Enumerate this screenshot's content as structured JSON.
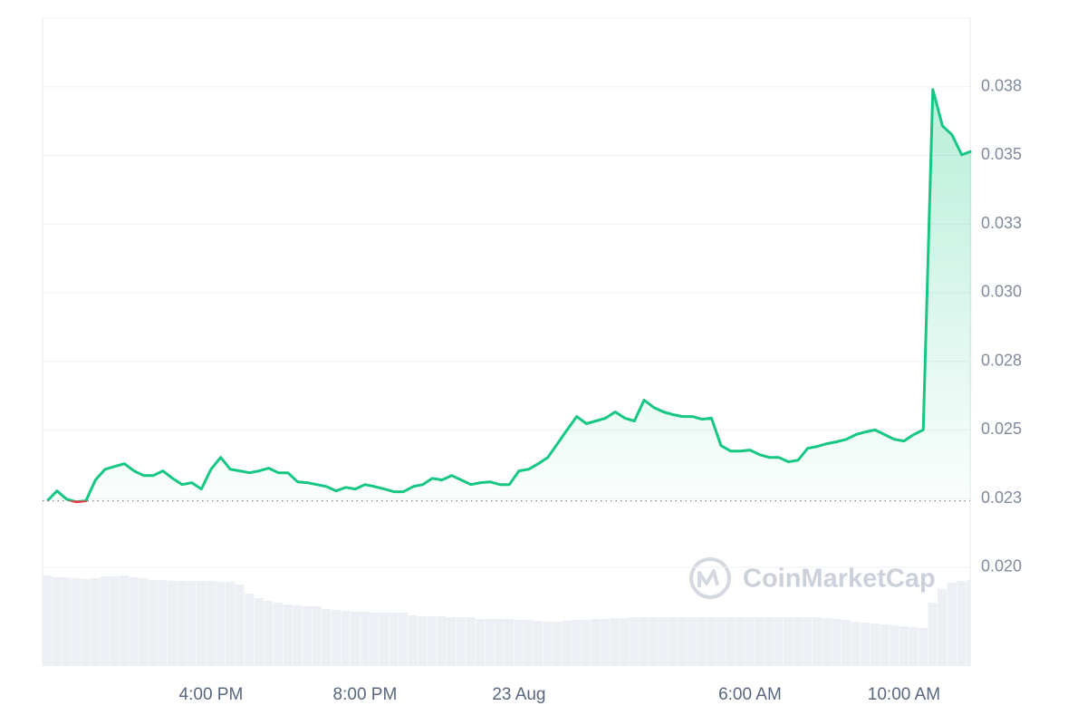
{
  "chart_data": {
    "type": "line",
    "watermark": "CoinMarketCap",
    "color": "#16c784",
    "down_color": "#ea3943",
    "volume_color": "#eceff3",
    "baseline": 0.02242,
    "categories": [
      null,
      null,
      null,
      null,
      null,
      null,
      null,
      null,
      null,
      null,
      null,
      null,
      null,
      null,
      null,
      null,
      null,
      "4:00 PM",
      null,
      null,
      null,
      null,
      null,
      null,
      null,
      null,
      null,
      null,
      null,
      null,
      null,
      null,
      null,
      "8:00 PM",
      null,
      null,
      null,
      null,
      null,
      null,
      null,
      null,
      null,
      null,
      null,
      null,
      null,
      null,
      null,
      "23 Aug",
      null,
      null,
      null,
      null,
      null,
      null,
      null,
      null,
      null,
      null,
      null,
      null,
      null,
      null,
      null,
      null,
      null,
      null,
      null,
      null,
      null,
      null,
      null,
      "6:00 AM",
      null,
      null,
      null,
      null,
      null,
      null,
      null,
      null,
      null,
      null,
      null,
      null,
      null,
      null,
      null,
      "10:00 AM",
      null,
      null,
      null,
      null,
      null,
      null,
      null
    ],
    "values": [
      0.02242,
      0.02278,
      0.02248,
      0.02238,
      0.02242,
      0.02318,
      0.02357,
      0.02367,
      0.02377,
      0.02351,
      0.02334,
      0.02334,
      0.02351,
      0.02324,
      0.02301,
      0.02308,
      0.02285,
      0.02357,
      0.024,
      0.02357,
      0.02351,
      0.02344,
      0.02351,
      0.02361,
      0.02344,
      0.02344,
      0.02311,
      0.02308,
      0.02301,
      0.02294,
      0.02278,
      0.02291,
      0.02285,
      0.02301,
      0.02294,
      0.02285,
      0.02275,
      0.02275,
      0.02294,
      0.02301,
      0.02324,
      0.02318,
      0.02334,
      0.02318,
      0.02301,
      0.02308,
      0.02311,
      0.02301,
      0.02301,
      0.02351,
      0.02357,
      0.02377,
      0.024,
      0.0245,
      0.025,
      0.02549,
      0.02523,
      0.02533,
      0.02543,
      0.02566,
      0.02543,
      0.02533,
      0.02609,
      0.02582,
      0.02566,
      0.02556,
      0.02549,
      0.02549,
      0.02539,
      0.02543,
      0.02443,
      0.02423,
      0.02423,
      0.02427,
      0.0241,
      0.024,
      0.024,
      0.02384,
      0.0239,
      0.02433,
      0.0244,
      0.0245,
      0.02457,
      0.02466,
      0.02483,
      0.02493,
      0.025,
      0.02483,
      0.02466,
      0.0246,
      0.02483,
      0.025,
      0.0374,
      0.03608,
      0.03575,
      0.03502,
      0.03515
    ],
    "volume": [
      100,
      98,
      98,
      97,
      96,
      97,
      99,
      99,
      100,
      98,
      97,
      95,
      95,
      94,
      94,
      94,
      94,
      94,
      93,
      93,
      90,
      80,
      75,
      72,
      70,
      68,
      67,
      66,
      66,
      63,
      62,
      61,
      60,
      60,
      59,
      59,
      59,
      59,
      56,
      55,
      55,
      55,
      54,
      54,
      54,
      52,
      52,
      52,
      52,
      51,
      51,
      50,
      49,
      49,
      50,
      51,
      51,
      52,
      52,
      53,
      53,
      54,
      54,
      54,
      54,
      54,
      54,
      54,
      54,
      54,
      54,
      54,
      54,
      54,
      54,
      54,
      54,
      54,
      54,
      54,
      54,
      53,
      52,
      51,
      49,
      48,
      47,
      46,
      45,
      44,
      43,
      42,
      70,
      85,
      92,
      94,
      95
    ],
    "ylim": [
      0.0164,
      0.04
    ],
    "y2lim": [
      0,
      715
    ],
    "yticks": [
      {
        "value": 0.02,
        "label": "0.020"
      },
      {
        "value": 0.0225,
        "label": "0.023"
      },
      {
        "value": 0.025,
        "label": "0.025"
      },
      {
        "value": 0.0275,
        "label": "0.028"
      },
      {
        "value": 0.03,
        "label": "0.030"
      },
      {
        "value": 0.0325,
        "label": "0.033"
      },
      {
        "value": 0.035,
        "label": "0.035"
      },
      {
        "value": 0.0375,
        "label": "0.038"
      }
    ],
    "grid": true
  }
}
